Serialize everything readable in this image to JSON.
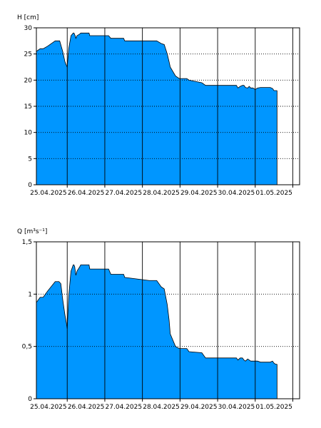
{
  "colors": {
    "area_fill": "#0096ff",
    "area_stroke": "#000000",
    "background": "#ffffff",
    "grid": "#000000"
  },
  "chart_data": [
    {
      "id": "water-level",
      "type": "area",
      "ylabel": "H [cm]",
      "xlabel": "",
      "title": "",
      "grid": {
        "vertical": "solid",
        "horizontal": "dotted"
      },
      "x_domain_days": [
        0,
        7
      ],
      "date_ticks": [
        "25.04.2025",
        "26.04.2025",
        "27.04.2025",
        "28.04.2025",
        "29.04.2025",
        "30.04.2025",
        "01.05.2025"
      ],
      "ylim": [
        0,
        30
      ],
      "y_ticks": [
        0,
        5,
        10,
        15,
        20,
        25,
        30
      ],
      "y_tick_labels": [
        "0",
        "5",
        "10",
        "15",
        "20",
        "25",
        "30"
      ],
      "series": [
        {
          "x": [
            0.0,
            0.1,
            0.18,
            0.3,
            0.5,
            0.62,
            0.7,
            0.76,
            0.8,
            0.82,
            0.86,
            0.92,
            0.98,
            1.0,
            1.03,
            1.05,
            1.08,
            1.15,
            1.18,
            1.4,
            1.42,
            1.92,
            1.98,
            2.32,
            2.35,
            3.0,
            3.2,
            3.32,
            3.4,
            3.48,
            3.53,
            3.56,
            3.7,
            3.8,
            4.0,
            4.06,
            4.4,
            4.5,
            5.32,
            5.36,
            5.42,
            5.48,
            5.52,
            5.56,
            5.62,
            5.66,
            5.7,
            5.76,
            5.82,
            5.88,
            5.96,
            6.22,
            6.28,
            6.32,
            6.36,
            6.4
          ],
          "y": [
            25.5,
            26.0,
            26.0,
            26.5,
            27.5,
            27.5,
            25.5,
            23.5,
            22.8,
            22.5,
            26.0,
            28.5,
            29.0,
            29.0,
            28.5,
            28.0,
            28.5,
            28.8,
            29.0,
            29.0,
            28.5,
            28.5,
            28.0,
            28.0,
            27.5,
            27.5,
            27.5,
            27.0,
            26.8,
            25.0,
            23.5,
            22.5,
            20.8,
            20.3,
            20.3,
            20.0,
            19.5,
            19.0,
            19.0,
            18.5,
            18.8,
            19.0,
            19.0,
            18.6,
            18.5,
            18.8,
            18.5,
            18.5,
            18.2,
            18.5,
            18.6,
            18.6,
            18.4,
            18.0,
            18.0,
            18.0
          ]
        }
      ]
    },
    {
      "id": "discharge",
      "type": "area",
      "ylabel": "Q [m³s⁻¹]",
      "xlabel": "",
      "title": "",
      "grid": {
        "vertical": "solid",
        "horizontal": "dotted"
      },
      "x_domain_days": [
        0,
        7
      ],
      "date_ticks": [
        "25.04.2025",
        "26.04.2025",
        "27.04.2025",
        "28.04.2025",
        "29.04.2025",
        "30.04.2025",
        "01.05.2025"
      ],
      "ylim": [
        0,
        1.5
      ],
      "y_ticks": [
        0,
        0.5,
        1,
        1.5
      ],
      "y_tick_labels": [
        "0",
        "0,5",
        "1",
        "1,5"
      ],
      "series": [
        {
          "x": [
            0.0,
            0.1,
            0.18,
            0.3,
            0.5,
            0.6,
            0.65,
            0.7,
            0.76,
            0.8,
            0.82,
            0.86,
            0.92,
            0.98,
            1.0,
            1.02,
            1.05,
            1.08,
            1.15,
            1.18,
            1.4,
            1.42,
            1.92,
            1.98,
            2.32,
            2.35,
            3.0,
            3.2,
            3.32,
            3.4,
            3.48,
            3.53,
            3.56,
            3.7,
            3.8,
            4.0,
            4.06,
            4.4,
            4.5,
            5.32,
            5.36,
            5.42,
            5.48,
            5.52,
            5.56,
            5.62,
            5.66,
            5.7,
            5.76,
            5.82,
            5.88,
            5.96,
            6.22,
            6.28,
            6.32,
            6.36,
            6.4
          ],
          "y": [
            0.92,
            0.97,
            0.97,
            1.03,
            1.12,
            1.12,
            1.1,
            0.95,
            0.8,
            0.72,
            0.67,
            0.98,
            1.22,
            1.28,
            1.28,
            1.26,
            1.18,
            1.22,
            1.26,
            1.28,
            1.28,
            1.24,
            1.24,
            1.19,
            1.19,
            1.16,
            1.13,
            1.13,
            1.07,
            1.05,
            0.9,
            0.75,
            0.62,
            0.5,
            0.48,
            0.48,
            0.45,
            0.44,
            0.39,
            0.39,
            0.37,
            0.39,
            0.39,
            0.37,
            0.36,
            0.38,
            0.37,
            0.36,
            0.36,
            0.36,
            0.36,
            0.35,
            0.35,
            0.36,
            0.34,
            0.33,
            0.33
          ]
        }
      ]
    }
  ]
}
